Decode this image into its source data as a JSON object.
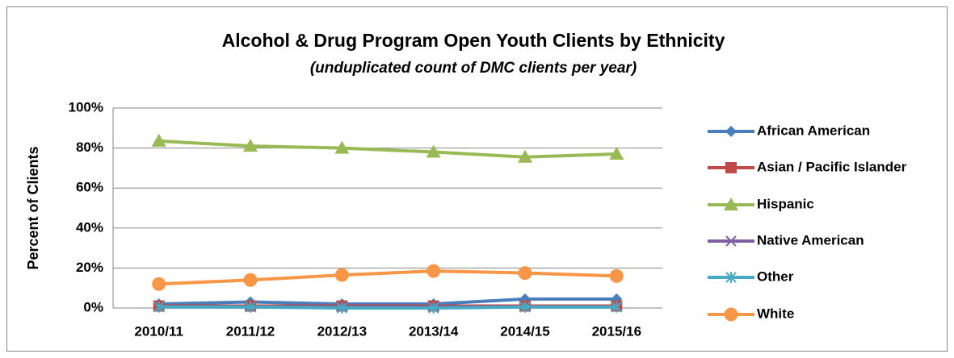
{
  "chart_data": {
    "type": "line",
    "title": "Alcohol & Drug Program Open Youth Clients by Ethnicity",
    "subtitle": "(unduplicated count of DMC clients per year)",
    "ylabel": "Percent of Clients",
    "categories": [
      "2010/11",
      "2011/12",
      "2012/13",
      "2013/14",
      "2014/15",
      "2015/16"
    ],
    "series": [
      {
        "name": "African American",
        "color": "#4a7ebb",
        "marker": "diamond",
        "values": [
          2,
          3,
          2,
          2,
          4.5,
          4.5
        ]
      },
      {
        "name": "Asian / Pacific Islander",
        "color": "#be4b48",
        "marker": "square",
        "values": [
          1,
          1,
          1,
          1,
          1,
          1
        ]
      },
      {
        "name": "Hispanic",
        "color": "#98b954",
        "marker": "triangle",
        "values": [
          83.5,
          81,
          80,
          78,
          75.5,
          77
        ]
      },
      {
        "name": "Native American",
        "color": "#7d60a0",
        "marker": "x",
        "values": [
          0.5,
          0.5,
          0.5,
          0.5,
          0.5,
          0.5
        ]
      },
      {
        "name": "Other",
        "color": "#46aac5",
        "marker": "star",
        "values": [
          0.5,
          0.5,
          0,
          0,
          0.5,
          0.5
        ]
      },
      {
        "name": "White",
        "color": "#f79646",
        "marker": "circle",
        "values": [
          12,
          14,
          16.5,
          18.5,
          17.5,
          16
        ]
      }
    ],
    "ylim": [
      0,
      100
    ],
    "yticks": [
      {
        "value": 0,
        "label": "0%"
      },
      {
        "value": 20,
        "label": "20%"
      },
      {
        "value": 40,
        "label": "40%"
      },
      {
        "value": 60,
        "label": "60%"
      },
      {
        "value": 80,
        "label": "80%"
      },
      {
        "value": 100,
        "label": "100%"
      }
    ],
    "grid": true,
    "legend": "right"
  }
}
